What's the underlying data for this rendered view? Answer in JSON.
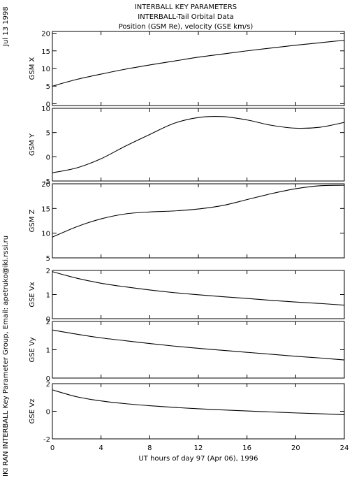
{
  "header": {
    "line1": "INTERBALL KEY PARAMETERS",
    "line2": "INTERBALL-Tail Orbital Data",
    "line3": "Position (GSM Re), velocity (GSE km/s)"
  },
  "side": {
    "date": "Jul 13 1998",
    "credit": "IKI RAN INTERBALL Key Parameter Group, Email: apetruko@iki.rssi.ru"
  },
  "chart_data": {
    "type": "line",
    "title": "",
    "xlabel": "UT hours of day  97 (Apr 06), 1996",
    "xlim": [
      0,
      24
    ],
    "xticks": [
      0,
      4,
      8,
      12,
      16,
      20,
      24
    ],
    "grid": false,
    "panels": [
      {
        "ylabel": "GSM X",
        "ylim": [
          -0.5,
          20.5
        ],
        "yticks": [
          0,
          5,
          10,
          15,
          20
        ],
        "series": [
          {
            "name": "",
            "x": [
              0,
              2,
              4,
              6,
              8,
              10,
              12,
              14,
              16,
              18,
              20,
              22,
              24
            ],
            "y": [
              5.0,
              6.9,
              8.4,
              9.8,
              11.0,
              12.1,
              13.2,
              14.1,
              15.0,
              15.8,
              16.6,
              17.3,
              18.0
            ]
          }
        ]
      },
      {
        "ylabel": "GSM Y",
        "ylim": [
          -5,
          10
        ],
        "yticks": [
          -5,
          0,
          5,
          10
        ],
        "series": [
          {
            "name": "",
            "x": [
              0,
              2,
              4,
              6,
              8,
              10,
              12,
              14,
              16,
              18,
              20,
              22,
              24
            ],
            "y": [
              -3.3,
              -2.3,
              -0.4,
              2.2,
              4.6,
              6.9,
              8.1,
              8.3,
              7.6,
              6.5,
              5.9,
              6.1,
              7.1
            ]
          }
        ]
      },
      {
        "ylabel": "GSM Z",
        "ylim": [
          5,
          20
        ],
        "yticks": [
          5,
          10,
          15,
          20
        ],
        "series": [
          {
            "name": "",
            "x": [
              0,
              2,
              4,
              6,
              8,
              10,
              12,
              14,
              16,
              18,
              20,
              22,
              24
            ],
            "y": [
              9.2,
              11.3,
              12.9,
              13.9,
              14.3,
              14.5,
              14.9,
              15.6,
              16.8,
              18.0,
              19.0,
              19.6,
              19.7
            ]
          }
        ]
      },
      {
        "ylabel": "GSE Vx",
        "ylim": [
          0,
          2
        ],
        "yticks": [
          0,
          1,
          2
        ],
        "series": [
          {
            "name": "",
            "x": [
              0,
              2,
              4,
              6,
              8,
              10,
              12,
              14,
              16,
              18,
              20,
              22,
              24
            ],
            "y": [
              1.95,
              1.68,
              1.47,
              1.32,
              1.19,
              1.08,
              0.99,
              0.91,
              0.84,
              0.76,
              0.69,
              0.63,
              0.56
            ]
          }
        ]
      },
      {
        "ylabel": "GSE Vy",
        "ylim": [
          0,
          2
        ],
        "yticks": [
          0,
          1,
          2
        ],
        "series": [
          {
            "name": "",
            "x": [
              0,
              2,
              4,
              6,
              8,
              10,
              12,
              14,
              16,
              18,
              20,
              22,
              24
            ],
            "y": [
              1.7,
              1.55,
              1.42,
              1.32,
              1.22,
              1.13,
              1.05,
              0.98,
              0.91,
              0.84,
              0.77,
              0.71,
              0.64
            ]
          }
        ]
      },
      {
        "ylabel": "GSE Vz",
        "ylim": [
          -2,
          2
        ],
        "yticks": [
          -2,
          0,
          2
        ],
        "series": [
          {
            "name": "",
            "x": [
              0,
              2,
              4,
              6,
              8,
              10,
              12,
              14,
              16,
              18,
              20,
              22,
              24
            ],
            "y": [
              1.55,
              1.05,
              0.75,
              0.55,
              0.4,
              0.28,
              0.18,
              0.1,
              0.02,
              -0.05,
              -0.12,
              -0.18,
              -0.25
            ]
          }
        ]
      }
    ]
  }
}
